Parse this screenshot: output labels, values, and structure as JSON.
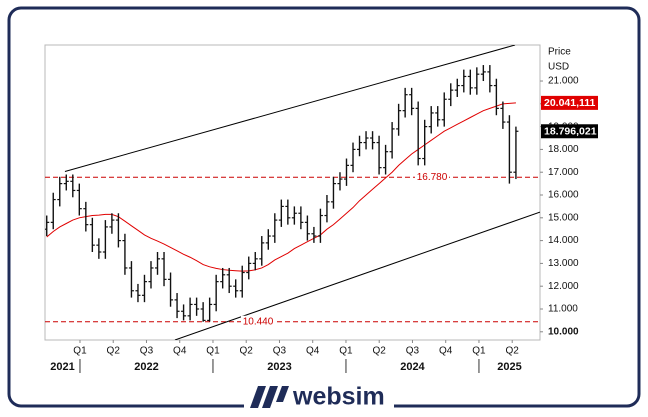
{
  "chart_data": {
    "type": "candlestick",
    "ylabel": "Price",
    "yunit": "USD",
    "x": [
      2021.75,
      2021.799,
      2021.848,
      2021.897,
      2021.946,
      2021.995,
      2022.044,
      2022.093,
      2022.142,
      2022.191,
      2022.24,
      2022.289,
      2022.338,
      2022.387,
      2022.436,
      2022.485,
      2022.534,
      2022.583,
      2022.632,
      2022.681,
      2022.73,
      2022.779,
      2022.828,
      2022.877,
      2022.926,
      2022.975,
      2023.024,
      2023.073,
      2023.122,
      2023.171,
      2023.22,
      2023.269,
      2023.318,
      2023.367,
      2023.416,
      2023.465,
      2023.514,
      2023.563,
      2023.612,
      2023.661,
      2023.71,
      2023.759,
      2023.808,
      2023.857,
      2023.906,
      2023.955,
      2024.004,
      2024.053,
      2024.102,
      2024.151,
      2024.2,
      2024.249,
      2024.298,
      2024.347,
      2024.396,
      2024.445,
      2024.494,
      2024.543,
      2024.592,
      2024.641,
      2024.69,
      2024.739,
      2024.788,
      2024.837,
      2024.886,
      2024.935,
      2024.984,
      2025.033,
      2025.082,
      2025.131,
      2025.18,
      2025.229,
      2025.278
    ],
    "open": [
      14500,
      14800,
      15800,
      16500,
      16600,
      16200,
      15400,
      14700,
      13800,
      13500,
      14600,
      14900,
      14000,
      12800,
      11800,
      11600,
      12200,
      12800,
      13200,
      12300,
      11400,
      10900,
      10700,
      11200,
      11000,
      10500,
      11200,
      12200,
      12500,
      12000,
      11800,
      12600,
      13000,
      13200,
      13900,
      14200,
      14900,
      15500,
      15000,
      15200,
      14800,
      14300,
      14200,
      15100,
      15700,
      16500,
      16700,
      17300,
      18000,
      18300,
      18500,
      18300,
      17200,
      17900,
      18900,
      19700,
      20400,
      19800,
      17600,
      19000,
      19600,
      19300,
      20200,
      20600,
      20800,
      21200,
      20700,
      21300,
      21400,
      20800,
      19800,
      19200,
      17000
    ],
    "high": [
      15100,
      16100,
      16800,
      16900,
      16900,
      16500,
      15700,
      15000,
      14100,
      14900,
      15200,
      15200,
      14300,
      13100,
      12100,
      12500,
      13100,
      13500,
      13500,
      12600,
      11700,
      11200,
      11500,
      11500,
      11300,
      11500,
      12500,
      12800,
      12800,
      12300,
      12900,
      13300,
      13500,
      14200,
      14500,
      15200,
      15800,
      15800,
      15500,
      15500,
      15100,
      14600,
      15400,
      16000,
      16800,
      17000,
      17600,
      18300,
      18600,
      18800,
      18800,
      18600,
      18200,
      19200,
      20000,
      20700,
      20700,
      20100,
      19300,
      19900,
      19900,
      20500,
      20900,
      21100,
      21500,
      21500,
      21600,
      21700,
      21700,
      21100,
      20100,
      19500,
      19000
    ],
    "low": [
      14200,
      14500,
      15500,
      16200,
      15900,
      15100,
      14400,
      13500,
      13200,
      13200,
      14300,
      13700,
      12500,
      11500,
      11300,
      11300,
      11900,
      12500,
      12000,
      11100,
      10600,
      10500,
      10500,
      10700,
      10440,
      10450,
      10900,
      11900,
      11700,
      11500,
      11500,
      12300,
      12700,
      12900,
      13600,
      13900,
      14600,
      14700,
      14700,
      14500,
      14000,
      13900,
      13900,
      14800,
      15400,
      16200,
      16400,
      17000,
      17700,
      18000,
      18000,
      16900,
      16900,
      17600,
      18600,
      19400,
      19500,
      17300,
      17300,
      18700,
      19000,
      19000,
      19900,
      20300,
      20500,
      20400,
      20400,
      21000,
      20500,
      19500,
      18900,
      16500,
      16700
    ],
    "close": [
      14800,
      15800,
      16500,
      16600,
      16200,
      15400,
      14700,
      13800,
      13500,
      14600,
      14900,
      14000,
      12800,
      11800,
      11600,
      12200,
      12800,
      13200,
      12300,
      11400,
      10900,
      10700,
      11200,
      11000,
      10500,
      11200,
      12200,
      12500,
      12000,
      11800,
      12600,
      13000,
      13200,
      13900,
      14200,
      14900,
      15500,
      15000,
      15200,
      14800,
      14300,
      14200,
      15100,
      15700,
      16500,
      16700,
      17300,
      18000,
      18300,
      18500,
      18300,
      17200,
      17900,
      18900,
      19700,
      20400,
      19800,
      17600,
      19000,
      19600,
      19300,
      20200,
      20600,
      20800,
      21200,
      20700,
      21300,
      21400,
      20800,
      19800,
      19200,
      17000,
      18796
    ],
    "color": "#111111",
    "moving_average": {
      "color": "#e00000",
      "values": [
        14160,
        14400,
        14600,
        14750,
        14900,
        15000,
        15050,
        15100,
        15120,
        15150,
        15150,
        15050,
        14850,
        14650,
        14450,
        14250,
        14100,
        13980,
        13850,
        13700,
        13550,
        13400,
        13270,
        13120,
        12950,
        12850,
        12780,
        12730,
        12700,
        12680,
        12660,
        12670,
        12720,
        12800,
        12950,
        13150,
        13300,
        13450,
        13650,
        13800,
        13950,
        14100,
        14250,
        14500,
        14700,
        14950,
        15200,
        15450,
        15750,
        16000,
        16250,
        16500,
        16750,
        17000,
        17300,
        17550,
        17800,
        18000,
        18200,
        18400,
        18600,
        18800,
        18950,
        19100,
        19250,
        19400,
        19550,
        19700,
        19800,
        19900,
        20000,
        20020,
        20041.111
      ]
    },
    "trendlines": [
      {
        "x": [
          2021.887,
          2025.271
        ],
        "y": [
          17032,
          22580
        ]
      },
      {
        "x": [
          2022.714,
          2025.459
        ],
        "y": [
          9640,
          15251
        ]
      }
    ],
    "hlines": [
      {
        "value": 16780,
        "label": "16.780",
        "color": "#cc0000"
      },
      {
        "value": 10440,
        "label": "10.440",
        "color": "#cc0000"
      }
    ],
    "last_labels": [
      {
        "value": 20041.111,
        "label": "20.041,111",
        "color": "#e00000"
      },
      {
        "value": 18796.021,
        "label": "18.796,021",
        "color": "#000000"
      }
    ],
    "xlim": [
      2021.737,
      2025.459
    ],
    "xticks": [
      {
        "value": 2022.0,
        "label": "Q1"
      },
      {
        "value": 2022.25,
        "label": "Q2"
      },
      {
        "value": 2022.5,
        "label": "Q3"
      },
      {
        "value": 2022.75,
        "label": "Q4"
      },
      {
        "value": 2023.0,
        "label": "Q1"
      },
      {
        "value": 2023.25,
        "label": "Q2"
      },
      {
        "value": 2023.5,
        "label": "Q3"
      },
      {
        "value": 2023.75,
        "label": "Q4"
      },
      {
        "value": 2024.0,
        "label": "Q1"
      },
      {
        "value": 2024.25,
        "label": "Q2"
      },
      {
        "value": 2024.5,
        "label": "Q3"
      },
      {
        "value": 2024.75,
        "label": "Q4"
      },
      {
        "value": 2025.0,
        "label": "Q1"
      },
      {
        "value": 2025.25,
        "label": "Q2"
      }
    ],
    "years": [
      "2021",
      "2022",
      "2023",
      "2024",
      "2025"
    ],
    "year_ticks": [
      2022,
      2023,
      2024,
      2025
    ],
    "ylim": [
      9640,
      22580
    ],
    "yticks": [
      {
        "value": 10000,
        "label": "10.000"
      },
      {
        "value": 11000,
        "label": "11.000"
      },
      {
        "value": 12000,
        "label": "12.000"
      },
      {
        "value": 13000,
        "label": "13.000"
      },
      {
        "value": 14000,
        "label": "14.000"
      },
      {
        "value": 15000,
        "label": "15.000"
      },
      {
        "value": 16000,
        "label": "16.000"
      },
      {
        "value": 17000,
        "label": "17.000"
      },
      {
        "value": 18000,
        "label": "18.000"
      },
      {
        "value": 19000,
        "label": "19.000"
      },
      {
        "value": 20000,
        "label": "20.000"
      },
      {
        "value": 21000,
        "label": "21.000"
      }
    ],
    "grid": false
  },
  "brand": "websim"
}
